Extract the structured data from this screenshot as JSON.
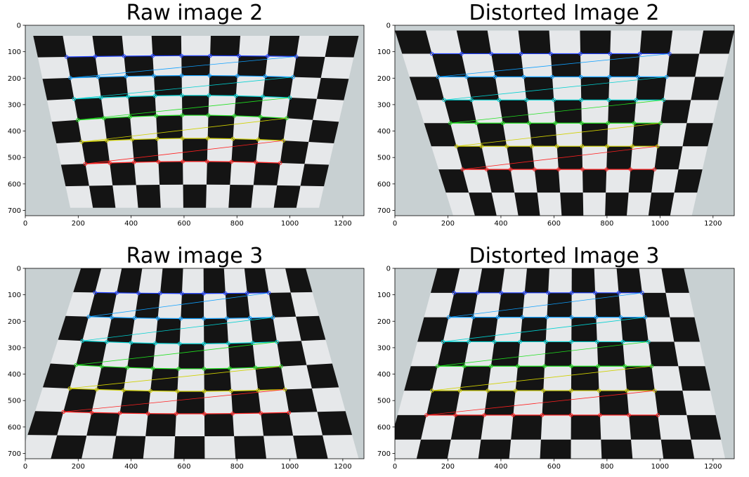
{
  "figure": {
    "panels": [
      {
        "title": "Raw image 2",
        "kind": "raw",
        "index": 2
      },
      {
        "title": "Distorted Image 2",
        "kind": "undistorted",
        "index": 2
      },
      {
        "title": "Raw image 3",
        "kind": "raw",
        "index": 3
      },
      {
        "title": "Distorted Image 3",
        "kind": "undistorted",
        "index": 3
      }
    ],
    "axes": {
      "x_ticks": [
        "0",
        "200",
        "400",
        "600",
        "800",
        "1000",
        "1200"
      ],
      "y_ticks": [
        "0",
        "100",
        "200",
        "300",
        "400",
        "500",
        "600",
        "700"
      ]
    },
    "chessboard_corners": {
      "cols": 9,
      "rows": 6
    },
    "corner_row_colors": [
      "#2040ff",
      "#10a0ff",
      "#00d0d0",
      "#20e020",
      "#d0d000",
      "#ff2020"
    ],
    "colors": {
      "dark_square": "#141414",
      "light_square": "#e6e8ea",
      "background": "#c8d0d2"
    }
  }
}
